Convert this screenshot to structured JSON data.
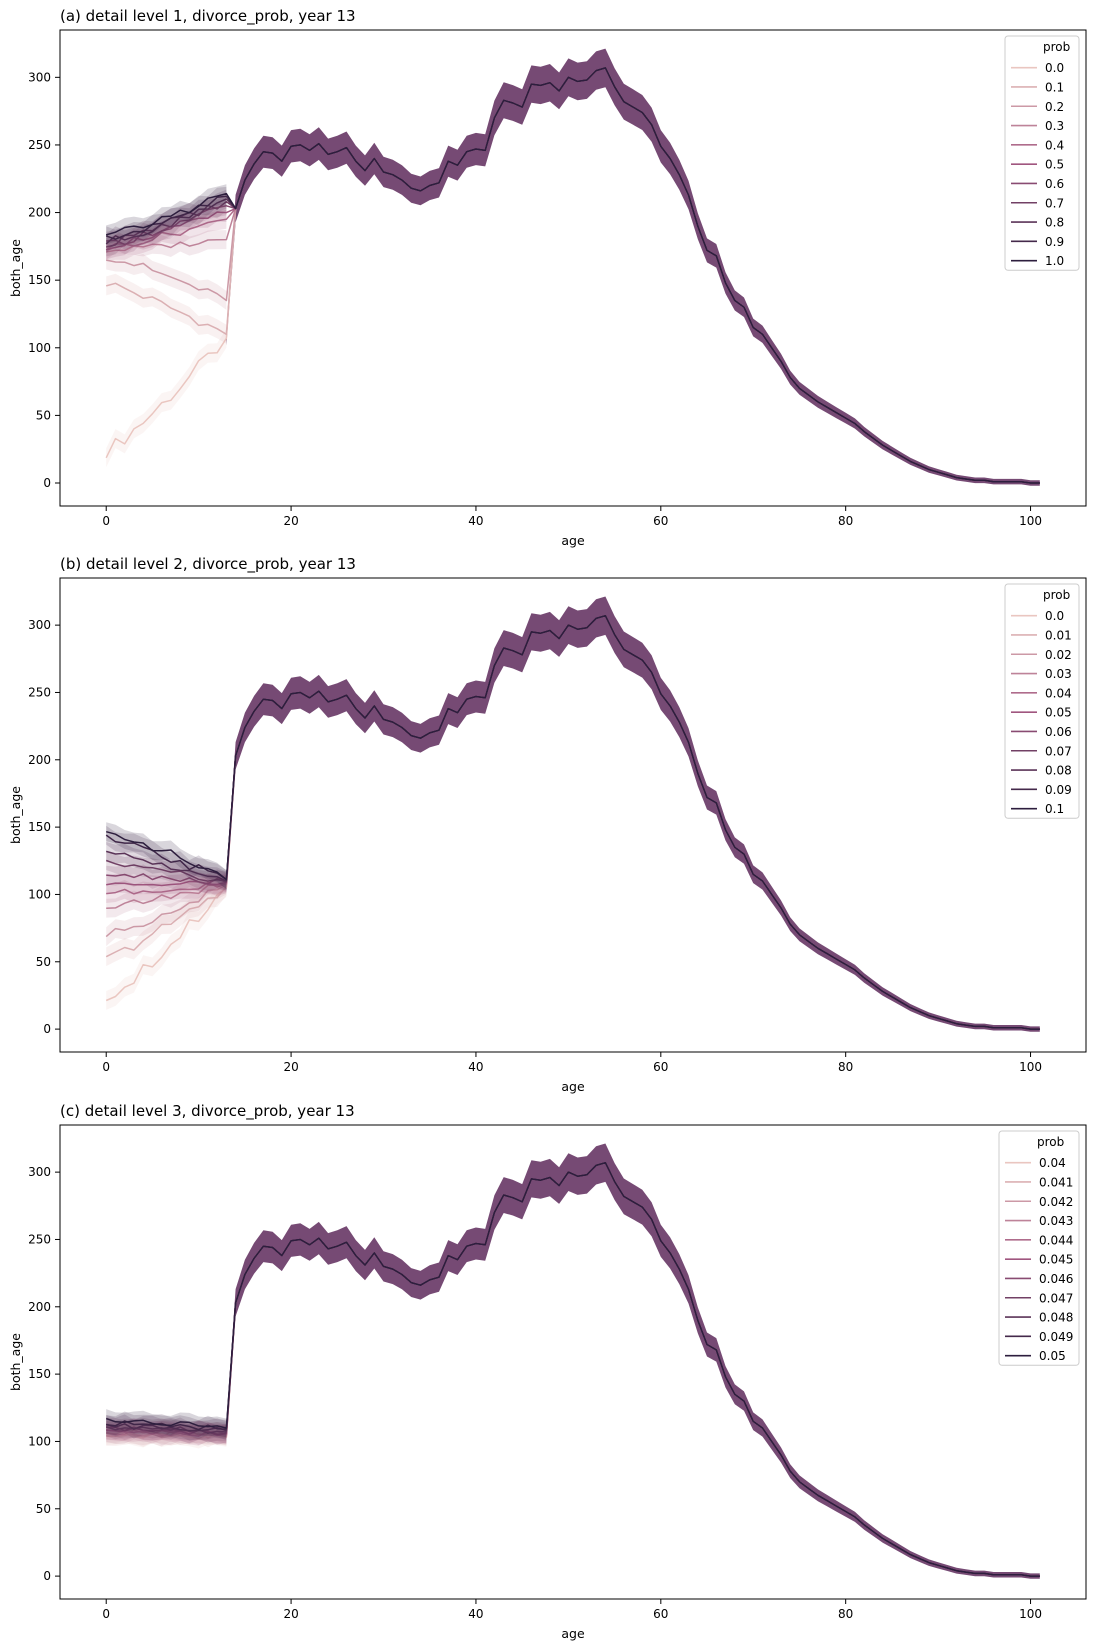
{
  "chart_data": [
    {
      "type": "line",
      "title": "(a) detail level 1, divorce_prob, year 13",
      "xlabel": "age",
      "ylabel": "both_age",
      "xlim": [
        -5,
        106
      ],
      "ylim": [
        -17,
        335
      ],
      "xticks": [
        0,
        20,
        40,
        60,
        80,
        100
      ],
      "yticks": [
        0,
        50,
        100,
        150,
        200,
        250,
        300
      ],
      "legend": {
        "title": "prob",
        "placement": "top-right"
      },
      "series": [
        {
          "name": "0.0",
          "child_start": 24,
          "child_end": 107
        },
        {
          "name": "0.1",
          "child_start": 148,
          "child_end": 110
        },
        {
          "name": "0.2",
          "child_start": 168,
          "child_end": 135
        },
        {
          "name": "0.3",
          "child_start": 172,
          "child_end": 180
        },
        {
          "name": "0.4",
          "child_start": 174,
          "child_end": 195
        },
        {
          "name": "0.5",
          "child_start": 175,
          "child_end": 200
        },
        {
          "name": "0.6",
          "child_start": 176,
          "child_end": 205
        },
        {
          "name": "0.7",
          "child_start": 177,
          "child_end": 208
        },
        {
          "name": "0.8",
          "child_start": 178,
          "child_end": 210
        },
        {
          "name": "0.9",
          "child_start": 180,
          "child_end": 212
        },
        {
          "name": "1.0",
          "child_start": 182,
          "child_end": 214
        }
      ]
    },
    {
      "type": "line",
      "title": "(b) detail level 2, divorce_prob, year 13",
      "xlabel": "age",
      "ylabel": "both_age",
      "xlim": [
        -5,
        106
      ],
      "ylim": [
        -17,
        335
      ],
      "xticks": [
        0,
        20,
        40,
        60,
        80,
        100
      ],
      "yticks": [
        0,
        50,
        100,
        150,
        200,
        250,
        300
      ],
      "legend": {
        "title": "prob",
        "placement": "top-right"
      },
      "series": [
        {
          "name": "0.0",
          "child_start": 24,
          "child_end": 105
        },
        {
          "name": "0.01",
          "child_start": 52,
          "child_end": 106
        },
        {
          "name": "0.02",
          "child_start": 70,
          "child_end": 107
        },
        {
          "name": "0.03",
          "child_start": 90,
          "child_end": 108
        },
        {
          "name": "0.04",
          "child_start": 101,
          "child_end": 108
        },
        {
          "name": "0.05",
          "child_start": 108,
          "child_end": 109
        },
        {
          "name": "0.06",
          "child_start": 115,
          "child_end": 109
        },
        {
          "name": "0.07",
          "child_start": 123,
          "child_end": 110
        },
        {
          "name": "0.08",
          "child_start": 131,
          "child_end": 110
        },
        {
          "name": "0.09",
          "child_start": 141,
          "child_end": 111
        },
        {
          "name": "0.1",
          "child_start": 148,
          "child_end": 111
        }
      ]
    },
    {
      "type": "line",
      "title": "(c) detail level 3, divorce_prob, year 13",
      "xlabel": "age",
      "ylabel": "both_age",
      "xlim": [
        -5,
        106
      ],
      "ylim": [
        -17,
        335
      ],
      "xticks": [
        0,
        20,
        40,
        60,
        80,
        100
      ],
      "yticks": [
        0,
        50,
        100,
        150,
        200,
        250,
        300
      ],
      "legend": {
        "title": "prob",
        "placement": "top-right"
      },
      "series": [
        {
          "name": "0.04",
          "child_start": 104,
          "child_end": 103
        },
        {
          "name": "0.041",
          "child_start": 105,
          "child_end": 104
        },
        {
          "name": "0.042",
          "child_start": 106,
          "child_end": 104
        },
        {
          "name": "0.043",
          "child_start": 107,
          "child_end": 105
        },
        {
          "name": "0.044",
          "child_start": 108,
          "child_end": 105
        },
        {
          "name": "0.045",
          "child_start": 109,
          "child_end": 106
        },
        {
          "name": "0.046",
          "child_start": 110,
          "child_end": 106
        },
        {
          "name": "0.047",
          "child_start": 111,
          "child_end": 107
        },
        {
          "name": "0.048",
          "child_start": 112,
          "child_end": 108
        },
        {
          "name": "0.049",
          "child_start": 114,
          "child_end": 109
        },
        {
          "name": "0.05",
          "child_start": 116,
          "child_end": 110
        }
      ]
    }
  ],
  "common_curve": {
    "ages": [
      13,
      14,
      15,
      16,
      17,
      18,
      19,
      20,
      21,
      22,
      23,
      24,
      25,
      26,
      27,
      28,
      29,
      30,
      31,
      32,
      33,
      34,
      35,
      36,
      37,
      38,
      39,
      40,
      41,
      42,
      43,
      44,
      45,
      46,
      47,
      48,
      49,
      50,
      51,
      52,
      53,
      54,
      55,
      56,
      57,
      58,
      59,
      60,
      61,
      62,
      63,
      64,
      65,
      66,
      67,
      68,
      69,
      70,
      71,
      72,
      73,
      74,
      75,
      76,
      77,
      78,
      79,
      80,
      81,
      82,
      83,
      84,
      85,
      86,
      87,
      88,
      89,
      90,
      91,
      92,
      93,
      94,
      95,
      96,
      97,
      98,
      99,
      100,
      101
    ],
    "values": [
      108,
      203,
      224,
      236,
      245,
      244,
      238,
      249,
      250,
      246,
      251,
      243,
      245,
      248,
      238,
      231,
      240,
      230,
      228,
      224,
      218,
      216,
      220,
      222,
      238,
      235,
      245,
      247,
      246,
      270,
      283,
      281,
      278,
      295,
      294,
      296,
      290,
      300,
      297,
      298,
      305,
      307,
      293,
      282,
      278,
      274,
      265,
      249,
      240,
      228,
      213,
      190,
      172,
      168,
      148,
      135,
      130,
      115,
      110,
      100,
      90,
      78,
      70,
      65,
      60,
      56,
      52,
      48,
      44,
      38,
      33,
      28,
      24,
      20,
      16,
      13,
      10,
      8,
      6,
      4,
      3,
      2,
      2,
      1,
      1,
      1,
      1,
      0,
      0
    ]
  },
  "colors": {
    "palette_light": "#eac6c0",
    "palette_mid": "#a0567f",
    "palette_dark": "#2d1e3e",
    "band": "#5e2a5c"
  }
}
